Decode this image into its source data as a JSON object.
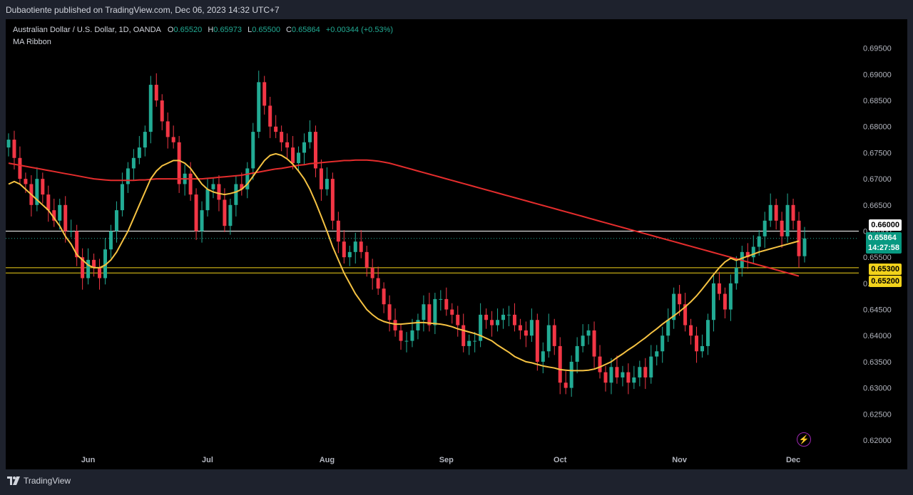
{
  "header": {
    "publisher": "Dubaotiente published on TradingView.com, Dec 06, 2023 14:32 UTC+7"
  },
  "legend": {
    "title": "Australian Dollar / U.S. Dollar, 1D, OANDA",
    "o_label": "O",
    "o_value": "0.65520",
    "h_label": "H",
    "h_value": "0.65973",
    "l_label": "L",
    "l_value": "0.65500",
    "c_label": "C",
    "c_value": "0.65864",
    "change": "+0.00344 (+0.53%)",
    "indicator": "MA Ribbon"
  },
  "price_tags": {
    "resistance": "0.66000",
    "current_price": "0.65864",
    "countdown": "14:27:58",
    "support_1": "0.65300",
    "support_2": "0.65200"
  },
  "footer": {
    "brand": "TradingView"
  },
  "colors": {
    "up": "#22ab94",
    "down": "#f23645",
    "ma_fast": "#f5c242",
    "ma_slow": "#e52d2d",
    "support": "#f2d21b",
    "resistance": "#ffffff",
    "background": "#000000"
  },
  "chart_data": {
    "type": "candlestick",
    "symbol": "AUDUSD",
    "timeframe": "1D",
    "y_ticks": [
      "0.62000",
      "0.62500",
      "0.63000",
      "0.63500",
      "0.64000",
      "0.64500",
      "0.65000",
      "0.65500",
      "0.66000",
      "0.66500",
      "0.67000",
      "0.67500",
      "0.68000",
      "0.68500",
      "0.69000",
      "0.69500"
    ],
    "ylim": [
      0.6185,
      0.6985
    ],
    "x_ticks": [
      {
        "label": "Jun",
        "index": 14
      },
      {
        "label": "Jul",
        "index": 35
      },
      {
        "label": "Aug",
        "index": 56
      },
      {
        "label": "Sep",
        "index": 77
      },
      {
        "label": "Oct",
        "index": 97
      },
      {
        "label": "Nov",
        "index": 118
      },
      {
        "label": "Dec",
        "index": 138
      }
    ],
    "horizontal_lines": [
      {
        "name": "resistance",
        "value": 0.66
      },
      {
        "name": "support_1",
        "value": 0.653
      },
      {
        "name": "support_2",
        "value": 0.652
      }
    ],
    "closes": [
      0.6775,
      0.674,
      0.67,
      0.669,
      0.665,
      0.67,
      0.667,
      0.664,
      0.662,
      0.665,
      0.66,
      0.66,
      0.655,
      0.651,
      0.6545,
      0.653,
      0.651,
      0.6565,
      0.66,
      0.664,
      0.669,
      0.672,
      0.674,
      0.676,
      0.679,
      0.688,
      0.685,
      0.681,
      0.678,
      0.677,
      0.669,
      0.671,
      0.667,
      0.66,
      0.664,
      0.668,
      0.669,
      0.666,
      0.661,
      0.665,
      0.669,
      0.668,
      0.672,
      0.679,
      0.6885,
      0.684,
      0.68,
      0.679,
      0.677,
      0.676,
      0.673,
      0.675,
      0.677,
      0.679,
      0.672,
      0.668,
      0.67,
      0.662,
      0.658,
      0.655,
      0.656,
      0.658,
      0.656,
      0.653,
      0.651,
      0.649,
      0.646,
      0.643,
      0.641,
      0.639,
      0.639,
      0.641,
      0.643,
      0.646,
      0.642,
      0.647,
      0.647,
      0.645,
      0.644,
      0.642,
      0.638,
      0.639,
      0.639,
      0.644,
      0.643,
      0.642,
      0.643,
      0.644,
      0.644,
      0.642,
      0.641,
      0.64,
      0.643,
      0.635,
      0.637,
      0.642,
      0.638,
      0.631,
      0.63,
      0.635,
      0.638,
      0.64,
      0.641,
      0.636,
      0.633,
      0.631,
      0.634,
      0.632,
      0.633,
      0.631,
      0.632,
      0.634,
      0.632,
      0.636,
      0.637,
      0.64,
      0.643,
      0.648,
      0.646,
      0.642,
      0.64,
      0.637,
      0.638,
      0.643,
      0.65,
      0.648,
      0.645,
      0.65,
      0.653,
      0.656,
      0.655,
      0.657,
      0.659,
      0.662,
      0.665,
      0.662,
      0.659,
      0.665,
      0.662,
      0.6552,
      0.6586
    ],
    "opens": [
      0.676,
      0.6775,
      0.674,
      0.67,
      0.669,
      0.665,
      0.67,
      0.667,
      0.664,
      0.662,
      0.665,
      0.66,
      0.66,
      0.655,
      0.651,
      0.6545,
      0.653,
      0.651,
      0.6565,
      0.66,
      0.664,
      0.669,
      0.672,
      0.674,
      0.676,
      0.679,
      0.688,
      0.685,
      0.681,
      0.678,
      0.677,
      0.669,
      0.671,
      0.667,
      0.66,
      0.664,
      0.668,
      0.669,
      0.666,
      0.661,
      0.665,
      0.669,
      0.668,
      0.672,
      0.679,
      0.6885,
      0.684,
      0.68,
      0.679,
      0.677,
      0.676,
      0.673,
      0.675,
      0.677,
      0.679,
      0.672,
      0.668,
      0.67,
      0.662,
      0.658,
      0.655,
      0.656,
      0.658,
      0.656,
      0.653,
      0.651,
      0.649,
      0.646,
      0.643,
      0.641,
      0.639,
      0.639,
      0.641,
      0.643,
      0.646,
      0.642,
      0.647,
      0.647,
      0.645,
      0.644,
      0.642,
      0.638,
      0.639,
      0.639,
      0.644,
      0.643,
      0.642,
      0.643,
      0.644,
      0.644,
      0.642,
      0.641,
      0.64,
      0.643,
      0.635,
      0.637,
      0.642,
      0.638,
      0.631,
      0.63,
      0.635,
      0.638,
      0.64,
      0.641,
      0.636,
      0.633,
      0.631,
      0.634,
      0.632,
      0.633,
      0.631,
      0.632,
      0.634,
      0.632,
      0.636,
      0.637,
      0.64,
      0.643,
      0.648,
      0.646,
      0.642,
      0.64,
      0.637,
      0.638,
      0.643,
      0.65,
      0.648,
      0.645,
      0.65,
      0.653,
      0.656,
      0.655,
      0.657,
      0.659,
      0.662,
      0.665,
      0.662,
      0.659,
      0.665,
      0.662,
      0.6552
    ],
    "ma_fast": [
      0.669,
      0.6695,
      0.669,
      0.668,
      0.667,
      0.666,
      0.665,
      0.664,
      0.6625,
      0.661,
      0.659,
      0.6575,
      0.6555,
      0.6545,
      0.6535,
      0.653,
      0.653,
      0.6535,
      0.6545,
      0.656,
      0.658,
      0.66,
      0.6625,
      0.665,
      0.6675,
      0.67,
      0.6715,
      0.6725,
      0.673,
      0.6735,
      0.6735,
      0.673,
      0.672,
      0.6705,
      0.669,
      0.668,
      0.6675,
      0.6672,
      0.667,
      0.6672,
      0.6675,
      0.668,
      0.669,
      0.6705,
      0.672,
      0.6735,
      0.6745,
      0.6748,
      0.6745,
      0.6738,
      0.6728,
      0.6715,
      0.67,
      0.668,
      0.6655,
      0.6628,
      0.66,
      0.657,
      0.6545,
      0.652,
      0.65,
      0.648,
      0.6465,
      0.645,
      0.644,
      0.6432,
      0.6427,
      0.6424,
      0.6422,
      0.6422,
      0.6423,
      0.6424,
      0.6425,
      0.6425,
      0.6424,
      0.6423,
      0.6422,
      0.642,
      0.6417,
      0.6413,
      0.641,
      0.6407,
      0.6404,
      0.64,
      0.6395,
      0.639,
      0.6382,
      0.6375,
      0.6368,
      0.636,
      0.6355,
      0.635,
      0.6348,
      0.6345,
      0.6342,
      0.634,
      0.6338,
      0.6335,
      0.6334,
      0.6333,
      0.6333,
      0.6333,
      0.6334,
      0.6336,
      0.634,
      0.6345,
      0.635,
      0.6358,
      0.6365,
      0.6373,
      0.638,
      0.6388,
      0.6396,
      0.6405,
      0.6413,
      0.6422,
      0.643,
      0.6438,
      0.6446,
      0.6455,
      0.6465,
      0.6476,
      0.6489,
      0.6503,
      0.6517,
      0.653,
      0.6541,
      0.6548,
      0.6544,
      0.6548,
      0.6552,
      0.6556,
      0.656,
      0.6563,
      0.6566,
      0.6569,
      0.6572,
      0.6575,
      0.6578,
      0.6581
    ],
    "ma_slow": [
      0.673,
      0.6728,
      0.6726,
      0.6724,
      0.6722,
      0.672,
      0.6718,
      0.6716,
      0.6714,
      0.6712,
      0.671,
      0.6708,
      0.6706,
      0.6704,
      0.6702,
      0.67,
      0.6699,
      0.6698,
      0.6697,
      0.6697,
      0.6697,
      0.6697,
      0.6697,
      0.6698,
      0.6698,
      0.6699,
      0.67,
      0.67,
      0.67,
      0.67,
      0.67,
      0.67,
      0.67,
      0.67,
      0.67,
      0.6701,
      0.6702,
      0.6703,
      0.6704,
      0.6705,
      0.6706,
      0.6707,
      0.6709,
      0.6711,
      0.6713,
      0.6715,
      0.6717,
      0.6719,
      0.672,
      0.6722,
      0.6724,
      0.6726,
      0.6727,
      0.6729,
      0.673,
      0.6731,
      0.6732,
      0.6733,
      0.6734,
      0.6735,
      0.6735,
      0.6736,
      0.6736,
      0.6736,
      0.6735,
      0.6734,
      0.6732,
      0.673,
      0.6727,
      0.6724,
      0.6721,
      0.6718,
      0.6715,
      0.6712,
      0.6709,
      0.6706,
      0.6703,
      0.67,
      0.6697,
      0.6694,
      0.6691,
      0.6688,
      0.6685,
      0.6682,
      0.6679,
      0.6676,
      0.6673,
      0.667,
      0.6667,
      0.6664,
      0.6661,
      0.6658,
      0.6655,
      0.6652,
      0.6649,
      0.6646,
      0.6643,
      0.664,
      0.6637,
      0.6634,
      0.6631,
      0.6628,
      0.6625,
      0.6622,
      0.6619,
      0.6616,
      0.6613,
      0.661,
      0.6607,
      0.6604,
      0.6601,
      0.6598,
      0.6595,
      0.6592,
      0.6589,
      0.6586,
      0.6583,
      0.658,
      0.6577,
      0.6574,
      0.6571,
      0.6568,
      0.6565,
      0.6562,
      0.6559,
      0.6556,
      0.6553,
      0.655,
      0.6547,
      0.6544,
      0.6541,
      0.6538,
      0.6535,
      0.6532,
      0.6529,
      0.6526,
      0.6523,
      0.652,
      0.6517,
      0.6514
    ]
  }
}
